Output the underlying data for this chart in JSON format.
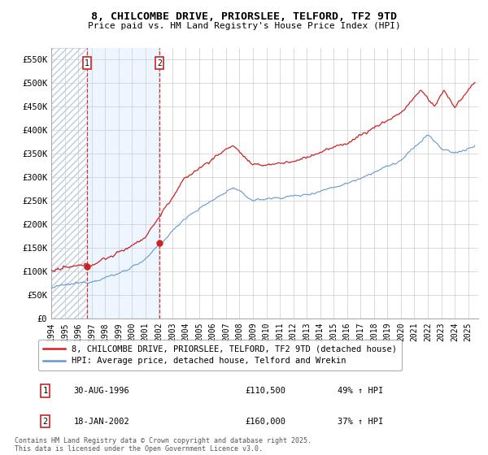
{
  "title_line1": "8, CHILCOMBE DRIVE, PRIORSLEE, TELFORD, TF2 9TD",
  "title_line2": "Price paid vs. HM Land Registry's House Price Index (HPI)",
  "ylim": [
    0,
    575000
  ],
  "yticks": [
    0,
    50000,
    100000,
    150000,
    200000,
    250000,
    300000,
    350000,
    400000,
    450000,
    500000,
    550000
  ],
  "ytick_labels": [
    "£0",
    "£50K",
    "£100K",
    "£150K",
    "£200K",
    "£250K",
    "£300K",
    "£350K",
    "£400K",
    "£450K",
    "£500K",
    "£550K"
  ],
  "xlim_start": 1994.0,
  "xlim_end": 2025.75,
  "hpi_color": "#6699cc",
  "price_color": "#cc2222",
  "transaction1_year": 1996.664,
  "transaction1_price": 110500,
  "transaction1_label": "1",
  "transaction1_date": "30-AUG-1996",
  "transaction1_hpi_pct": "49%",
  "transaction2_year": 2002.046,
  "transaction2_price": 160000,
  "transaction2_label": "2",
  "transaction2_date": "18-JAN-2002",
  "transaction2_hpi_pct": "37%",
  "legend_property": "8, CHILCOMBE DRIVE, PRIORSLEE, TELFORD, TF2 9TD (detached house)",
  "legend_hpi": "HPI: Average price, detached house, Telford and Wrekin",
  "footnote": "Contains HM Land Registry data © Crown copyright and database right 2025.\nThis data is licensed under the Open Government Licence v3.0.",
  "grid_color": "#cccccc",
  "hatch_end_year": 1996.664,
  "num_points": 380
}
